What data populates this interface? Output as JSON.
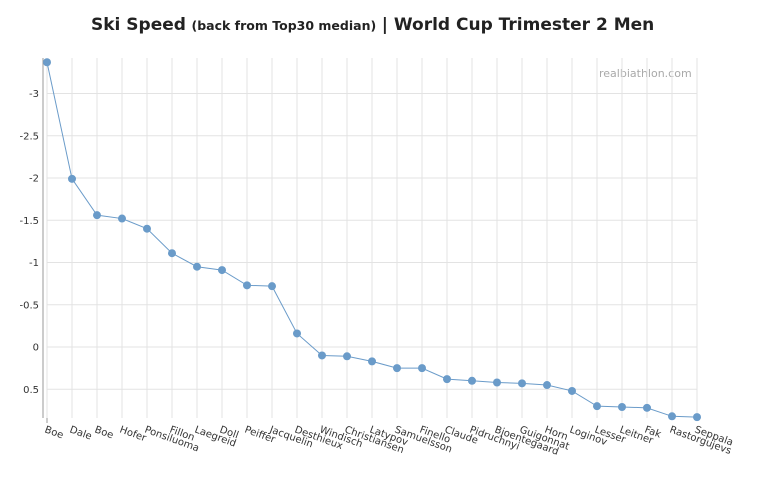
{
  "header": {
    "title_part1": "Ski Speed",
    "title_part2": "(back from Top30 median)",
    "title_part3": "| World Cup Trimester 2  Men"
  },
  "watermark": "realbiathlon.com",
  "colors": {
    "series": "#6a9bc9",
    "grid": "#e3e3e3",
    "axis": "#9a9a9a"
  },
  "chart_data": {
    "type": "line",
    "title": "Ski Speed (back from Top30 median) | World Cup Trimester 2  Men",
    "xlabel": "",
    "ylabel": "",
    "y_reversed": true,
    "ylim": [
      -3.4,
      0.85
    ],
    "y_ticks": [
      -3,
      -2.5,
      -2,
      -1.5,
      -1,
      -0.5,
      0,
      0.5
    ],
    "y_tick_labels": [
      "-3",
      "-2.5",
      "-2",
      "-1.5",
      "-1",
      "-0.5",
      "0",
      "0.5"
    ],
    "grid": true,
    "categories": [
      "Boe",
      "Dale",
      "Boe",
      "Hofer",
      "Ponsiluoma",
      "Fillon",
      "Laegreid",
      "Doll",
      "Peiffer",
      "Jacquelin",
      "Desthieux",
      "Windisch",
      "Christiansen",
      "Latypov",
      "Samuelsson",
      "Finello",
      "Claude",
      "Pidruchnyi",
      "Bjoentegaard",
      "Guigonnat",
      "Horn",
      "Loginov",
      "Lesser",
      "Leitner",
      "Fak",
      "Rastorgujevs",
      "Seppala"
    ],
    "series": [
      {
        "values": [
          -3.37,
          -1.99,
          -1.56,
          -1.52,
          -1.4,
          -1.11,
          -0.95,
          -0.91,
          -0.73,
          -0.72,
          -0.16,
          0.1,
          0.11,
          0.17,
          0.25,
          0.25,
          0.38,
          0.4,
          0.42,
          0.43,
          0.45,
          0.52,
          0.7,
          0.71,
          0.72,
          0.82,
          0.83
        ]
      }
    ]
  }
}
